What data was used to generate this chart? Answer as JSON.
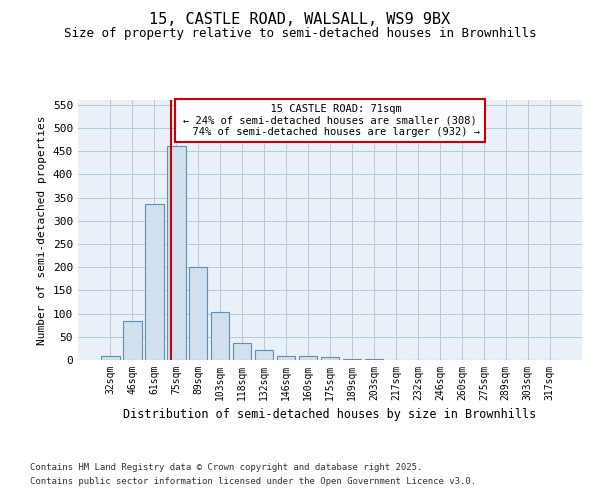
{
  "title1": "15, CASTLE ROAD, WALSALL, WS9 9BX",
  "title2": "Size of property relative to semi-detached houses in Brownhills",
  "xlabel": "Distribution of semi-detached houses by size in Brownhills",
  "ylabel": "Number of semi-detached properties",
  "categories": [
    "32sqm",
    "46sqm",
    "61sqm",
    "75sqm",
    "89sqm",
    "103sqm",
    "118sqm",
    "132sqm",
    "146sqm",
    "160sqm",
    "175sqm",
    "189sqm",
    "203sqm",
    "217sqm",
    "232sqm",
    "246sqm",
    "260sqm",
    "275sqm",
    "289sqm",
    "303sqm",
    "317sqm"
  ],
  "values": [
    8,
    83,
    335,
    460,
    200,
    103,
    37,
    22,
    9,
    8,
    6,
    2,
    2,
    0,
    0,
    0,
    0,
    0,
    0,
    0,
    0
  ],
  "bar_color": "#d0e0ef",
  "bar_edge_color": "#6090b8",
  "property_label": "15 CASTLE ROAD: 71sqm",
  "pct_smaller": "24% of semi-detached houses are smaller (308)",
  "pct_larger": "74% of semi-detached houses are larger (932)",
  "vline_x": 2.78,
  "ylim": [
    0,
    560
  ],
  "yticks": [
    0,
    50,
    100,
    150,
    200,
    250,
    300,
    350,
    400,
    450,
    500,
    550
  ],
  "footer1": "Contains HM Land Registry data © Crown copyright and database right 2025.",
  "footer2": "Contains public sector information licensed under the Open Government Licence v3.0.",
  "bg_color": "#ffffff",
  "plot_bg_color": "#e8f0f8",
  "grid_color": "#b8c8d8",
  "annotation_box_color": "#cc0000",
  "vline_color": "#cc0000",
  "title1_fontsize": 11,
  "title2_fontsize": 9
}
